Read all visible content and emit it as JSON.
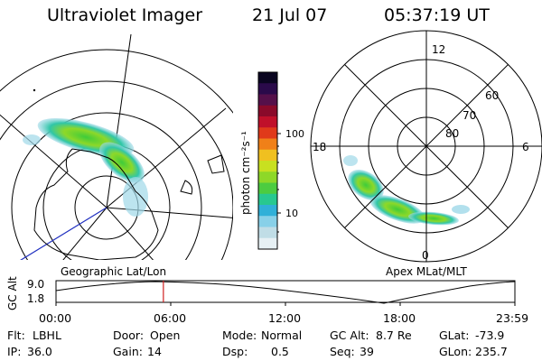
{
  "header": {
    "instrument": "Ultraviolet Imager",
    "date": "21 Jul 07",
    "time": "05:37:19 UT"
  },
  "colorbar": {
    "unit_label": "photon cm⁻²s⁻¹",
    "ticks": [
      "100",
      "10"
    ],
    "colors": [
      "#0a0520",
      "#2a0a4a",
      "#55104a",
      "#8a0a2a",
      "#c0102a",
      "#e03a1a",
      "#f08018",
      "#f0c020",
      "#c8e020",
      "#8ed828",
      "#4ccc40",
      "#28c890",
      "#30b0d8",
      "#88d0e8",
      "#c0dde6",
      "#e6f0f4"
    ]
  },
  "left_map": {
    "label": "Geographic Lat/Lon"
  },
  "right_map": {
    "label": "Apex MLat/MLT",
    "mlt_labels": [
      "12",
      "18",
      "6",
      "0"
    ],
    "mlat_labels": [
      "60",
      "70",
      "80"
    ]
  },
  "timeline": {
    "ylabel": "GC Alt",
    "ymax": "9.0",
    "ymin": "1.8",
    "xticks": [
      "00:00",
      "06:00",
      "12:00",
      "18:00",
      "23:59"
    ],
    "marker_fraction": 0.234
  },
  "footer": {
    "row1": [
      {
        "key": "Flt:",
        "value": "LBHL"
      },
      {
        "key": "Door:",
        "value": "Open"
      },
      {
        "key": "Mode:",
        "value": "Normal"
      },
      {
        "key": "GC Alt:",
        "value": "8.7 Re"
      },
      {
        "key": "GLat:",
        "value": "-73.9"
      }
    ],
    "row2": [
      {
        "key": "IP:",
        "value": "36.0"
      },
      {
        "key": "Gain:",
        "value": "14"
      },
      {
        "key": "Dsp:",
        "value": "0.5"
      },
      {
        "key": "Seq:",
        "value": "39"
      },
      {
        "key": "GLon:",
        "value": "235.7"
      }
    ]
  }
}
